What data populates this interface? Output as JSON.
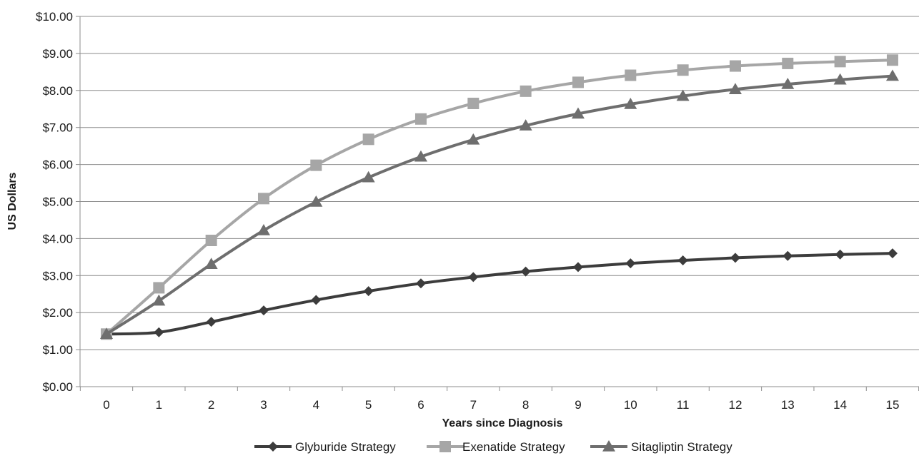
{
  "chart_data": {
    "type": "line",
    "xlabel": "Years since Diagnosis",
    "ylabel": "US Dollars",
    "x": [
      0,
      1,
      2,
      3,
      4,
      5,
      6,
      7,
      8,
      9,
      10,
      11,
      12,
      13,
      14,
      15
    ],
    "x_tick_labels": [
      "0",
      "1",
      "2",
      "3",
      "4",
      "5",
      "6",
      "7",
      "8",
      "9",
      "10",
      "11",
      "12",
      "13",
      "14",
      "15"
    ],
    "ylim": [
      0,
      10
    ],
    "y_ticks": [
      0,
      1,
      2,
      3,
      4,
      5,
      6,
      7,
      8,
      9,
      10
    ],
    "y_tick_labels": [
      "$0.00",
      "$1.00",
      "$2.00",
      "$3.00",
      "$4.00",
      "$5.00",
      "$6.00",
      "$7.00",
      "$8.00",
      "$9.00",
      "$10.00"
    ],
    "grid": "horizontal",
    "legend_position": "bottom",
    "series": [
      {
        "name": "Glyburide Strategy",
        "marker": "diamond",
        "color": "#3c3c3c",
        "values": [
          1.42,
          1.47,
          1.75,
          2.06,
          2.34,
          2.58,
          2.79,
          2.96,
          3.11,
          3.23,
          3.33,
          3.41,
          3.48,
          3.53,
          3.57,
          3.6
        ]
      },
      {
        "name": "Exenatide Strategy",
        "marker": "square",
        "color": "#a6a6a6",
        "values": [
          1.42,
          2.67,
          3.95,
          5.08,
          5.98,
          6.68,
          7.23,
          7.65,
          7.98,
          8.22,
          8.41,
          8.55,
          8.66,
          8.73,
          8.78,
          8.82
        ]
      },
      {
        "name": "Sitagliptin Strategy",
        "marker": "triangle",
        "color": "#6e6e6e",
        "values": [
          1.42,
          2.32,
          3.31,
          4.22,
          4.99,
          5.65,
          6.21,
          6.67,
          7.05,
          7.37,
          7.63,
          7.85,
          8.03,
          8.17,
          8.29,
          8.39
        ]
      }
    ]
  }
}
